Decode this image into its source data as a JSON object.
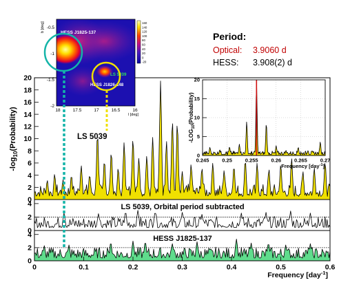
{
  "period_box": {
    "heading": "Period:",
    "optical_label": "Optical:",
    "optical_value": "3.9060 d",
    "hess_label": "HESS:",
    "hess_value": "3.908(2) d"
  },
  "sky_map": {
    "b_axis_label": "b [deg]",
    "l_axis_label": "l [deg]",
    "b_ticks": [
      "-0.5",
      "-1",
      "-1.5",
      "-2"
    ],
    "l_ticks": [
      "18",
      "17.5",
      "17",
      "16.5",
      "16"
    ],
    "colorbar_ticks": [
      "160",
      "140",
      "120",
      "100",
      "80",
      "60",
      "40",
      "20",
      "0",
      "-20"
    ],
    "source_label_1": "HESS J1825-137",
    "source_label_2_prefix": "HESS J1826-148",
    "source_label_2_overlay": "LS 5039"
  },
  "colors": {
    "fill_yellow": "#f0e000",
    "fill_green": "#5fdc8c",
    "dash_cyan": "#14b4a8",
    "dash_yellow": "#f0e000",
    "optical_red": "#c00000",
    "peak_line_red": "#d01010"
  },
  "chart_data": [
    {
      "type": "area",
      "panel": "LS 5039",
      "annotation": "LS 5039",
      "ylabel": "-log10(Probability)",
      "ylabel_parts": {
        "pre": "-log",
        "sub": "10",
        "post": "(Probability)"
      },
      "xlim": [
        0,
        0.6
      ],
      "ylim": [
        0,
        20
      ],
      "yticks": [
        "0",
        "2",
        "4",
        "6",
        "8",
        "10",
        "12",
        "14",
        "16",
        "18",
        "20"
      ],
      "peaks": [
        {
          "x": 0.026,
          "y": 3.2
        },
        {
          "x": 0.041,
          "y": 4.2
        },
        {
          "x": 0.058,
          "y": 3.3
        },
        {
          "x": 0.075,
          "y": 4.0
        },
        {
          "x": 0.095,
          "y": 5.6
        },
        {
          "x": 0.112,
          "y": 4.1
        },
        {
          "x": 0.128,
          "y": 10.8
        },
        {
          "x": 0.142,
          "y": 6.4
        },
        {
          "x": 0.156,
          "y": 7.8
        },
        {
          "x": 0.17,
          "y": 5.2
        },
        {
          "x": 0.182,
          "y": 9.4
        },
        {
          "x": 0.2,
          "y": 10.0
        },
        {
          "x": 0.212,
          "y": 6.8
        },
        {
          "x": 0.228,
          "y": 7.2
        },
        {
          "x": 0.24,
          "y": 10.2
        },
        {
          "x": 0.2545,
          "y": 8.5
        },
        {
          "x": 0.256,
          "y": 19.5
        },
        {
          "x": 0.268,
          "y": 9.6
        },
        {
          "x": 0.28,
          "y": 13.0
        },
        {
          "x": 0.29,
          "y": 12.6
        },
        {
          "x": 0.3,
          "y": 4.6
        },
        {
          "x": 0.318,
          "y": 5.8
        },
        {
          "x": 0.34,
          "y": 5.2
        },
        {
          "x": 0.362,
          "y": 6.0
        },
        {
          "x": 0.385,
          "y": 4.8
        },
        {
          "x": 0.405,
          "y": 5.5
        },
        {
          "x": 0.428,
          "y": 6.5
        },
        {
          "x": 0.452,
          "y": 6.0
        },
        {
          "x": 0.476,
          "y": 5.0
        },
        {
          "x": 0.5,
          "y": 5.8
        },
        {
          "x": 0.522,
          "y": 6.8
        },
        {
          "x": 0.545,
          "y": 4.6
        },
        {
          "x": 0.568,
          "y": 5.2
        },
        {
          "x": 0.59,
          "y": 6.2
        }
      ]
    },
    {
      "type": "line",
      "panel": "LS 5039, Orbital period subtracted",
      "annotation": "LS 5039, Orbital period subtracted",
      "xlim": [
        0,
        0.6
      ],
      "ylim": [
        0,
        4.6
      ],
      "yticks": [
        "0",
        "2",
        "4"
      ],
      "threshold": 2,
      "peaks": [
        {
          "x": 0.06,
          "y": 2.6
        },
        {
          "x": 0.13,
          "y": 2.5
        },
        {
          "x": 0.185,
          "y": 2.8
        },
        {
          "x": 0.21,
          "y": 3.0
        },
        {
          "x": 0.245,
          "y": 2.8
        },
        {
          "x": 0.3,
          "y": 2.7
        },
        {
          "x": 0.34,
          "y": 2.4
        },
        {
          "x": 0.42,
          "y": 2.6
        },
        {
          "x": 0.47,
          "y": 2.7
        },
        {
          "x": 0.52,
          "y": 2.9
        },
        {
          "x": 0.56,
          "y": 2.6
        }
      ]
    },
    {
      "type": "area",
      "panel": "HESS J1825-137",
      "annotation": "HESS J1825-137",
      "xlabel": "Frequency [day⁻¹]",
      "xlabel_parts": {
        "pre": "Frequency [day",
        "sup": "-1",
        "post": "]"
      },
      "xlim": [
        0,
        0.6
      ],
      "ylim": [
        0,
        4.6
      ],
      "yticks": [
        "0",
        "2",
        "4"
      ],
      "xticks": [
        "0",
        "0.1",
        "0.2",
        "0.3",
        "0.4",
        "0.5",
        "0.6"
      ],
      "threshold": 2,
      "peaks": [
        {
          "x": 0.02,
          "y": 2.3
        },
        {
          "x": 0.07,
          "y": 2.4
        },
        {
          "x": 0.155,
          "y": 2.8
        },
        {
          "x": 0.2,
          "y": 3.0
        },
        {
          "x": 0.225,
          "y": 2.9
        },
        {
          "x": 0.28,
          "y": 2.6
        },
        {
          "x": 0.33,
          "y": 2.9
        },
        {
          "x": 0.41,
          "y": 3.3
        },
        {
          "x": 0.44,
          "y": 2.7
        },
        {
          "x": 0.475,
          "y": 2.7
        },
        {
          "x": 0.51,
          "y": 2.4
        },
        {
          "x": 0.56,
          "y": 2.6
        }
      ]
    },
    {
      "type": "area",
      "panel": "inset zoom",
      "ylabel": "-LOG10(Probability)",
      "ylabel_parts": {
        "pre": "-LOG",
        "sub": "10",
        "post": "(Probability)"
      },
      "xlabel": "Frequency [day⁻¹]",
      "xlabel_parts": {
        "pre": "Frequency [day",
        "sup": "-1",
        "post": "]"
      },
      "xlim": [
        0.245,
        0.27
      ],
      "ylim": [
        0,
        20
      ],
      "yticks": [
        "0",
        "5",
        "10",
        "15",
        "20"
      ],
      "xticks": [
        "0.245",
        "0.25",
        "0.255",
        "0.26",
        "0.265",
        "0.27"
      ],
      "marked_frequency": 0.256,
      "peaks": [
        {
          "x": 0.2465,
          "y": 2.2
        },
        {
          "x": 0.2485,
          "y": 1.5
        },
        {
          "x": 0.2505,
          "y": 2.3
        },
        {
          "x": 0.2525,
          "y": 3.0
        },
        {
          "x": 0.254,
          "y": 9.0
        },
        {
          "x": 0.256,
          "y": 19.4
        },
        {
          "x": 0.258,
          "y": 8.5
        },
        {
          "x": 0.26,
          "y": 2.6
        },
        {
          "x": 0.262,
          "y": 1.4
        },
        {
          "x": 0.2645,
          "y": 2.2
        },
        {
          "x": 0.2665,
          "y": 1.3
        },
        {
          "x": 0.269,
          "y": 3.6
        }
      ]
    }
  ]
}
